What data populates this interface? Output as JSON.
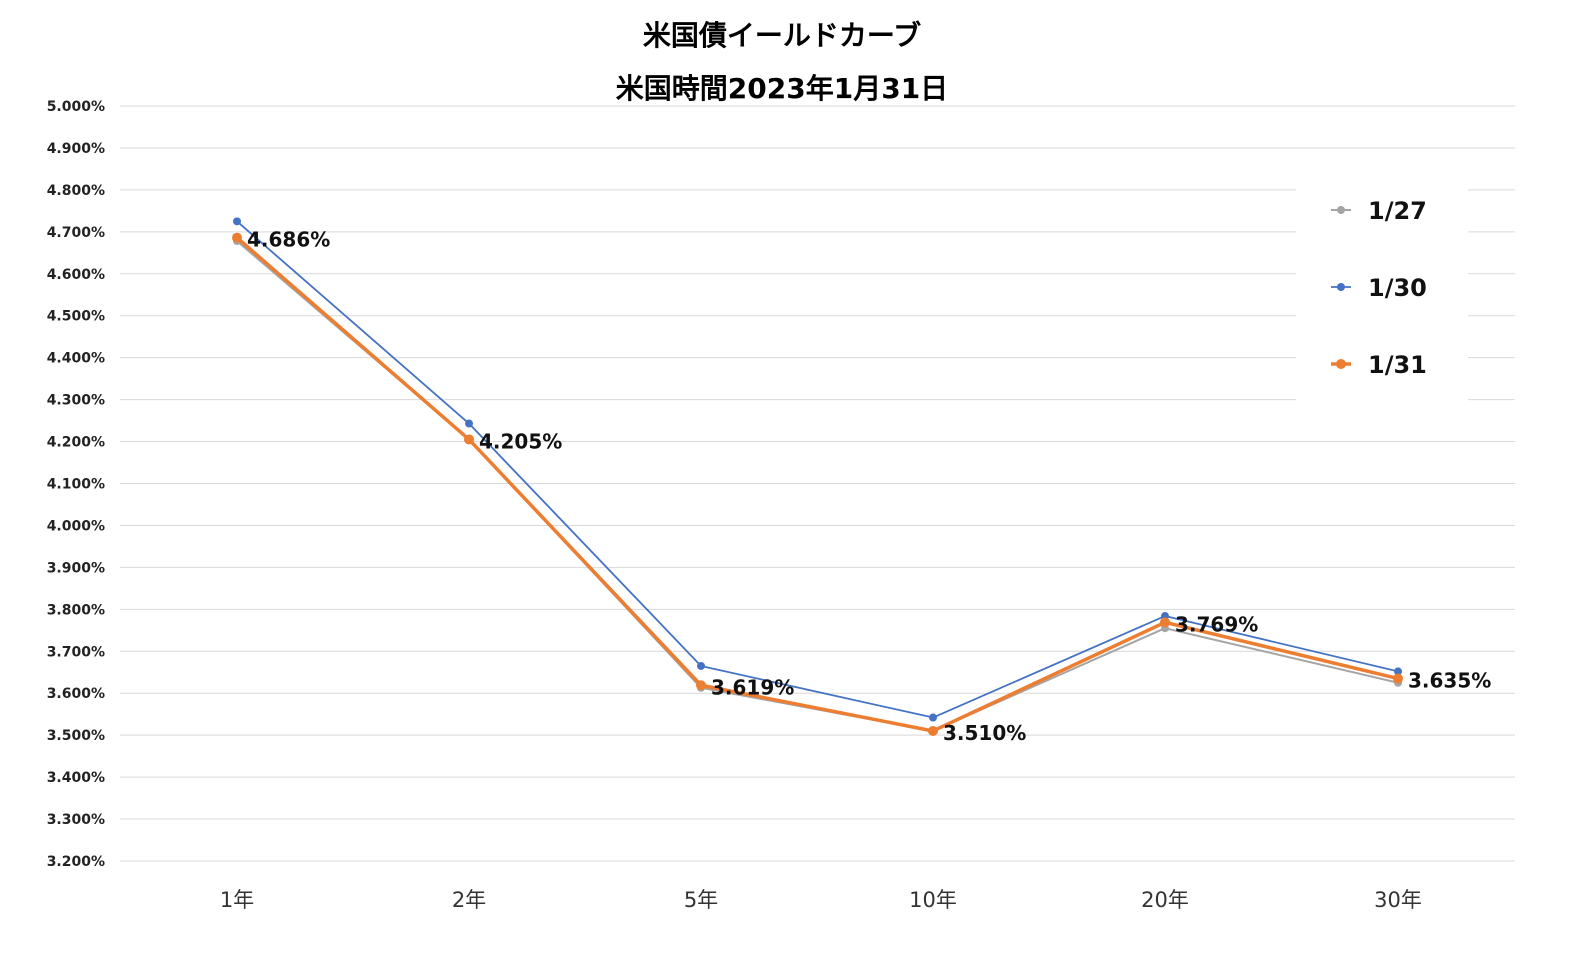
{
  "chart_data": {
    "type": "line",
    "title": "米国債イールドカーブ",
    "subtitle": "米国時間2023年1月31日",
    "xlabel": "",
    "ylabel": "",
    "categories": [
      "1年",
      "2年",
      "5年",
      "10年",
      "20年",
      "30年"
    ],
    "ylim": [
      3.2,
      5.0
    ],
    "ytick_step": 0.1,
    "ytick_labels": [
      "5.000%",
      "4.900%",
      "4.800%",
      "4.700%",
      "4.600%",
      "4.500%",
      "4.400%",
      "4.300%",
      "4.200%",
      "4.100%",
      "4.000%",
      "3.900%",
      "3.800%",
      "3.700%",
      "3.600%",
      "3.500%",
      "3.400%",
      "3.300%",
      "3.200%"
    ],
    "grid": true,
    "legend_position": "right",
    "series": [
      {
        "name": "1/27",
        "color": "#a5a5a5",
        "values": [
          4.678,
          4.205,
          3.613,
          3.51,
          3.755,
          3.625
        ]
      },
      {
        "name": "1/30",
        "color": "#4472c4",
        "values": [
          4.725,
          4.243,
          3.665,
          3.542,
          3.784,
          3.652
        ]
      },
      {
        "name": "1/31",
        "color": "#ed7d31",
        "values": [
          4.686,
          4.205,
          3.619,
          3.51,
          3.769,
          3.635
        ]
      }
    ],
    "data_labels": [
      "4.686%",
      "4.205%",
      "3.619%",
      "3.510%",
      "3.769%",
      "3.635%"
    ]
  }
}
